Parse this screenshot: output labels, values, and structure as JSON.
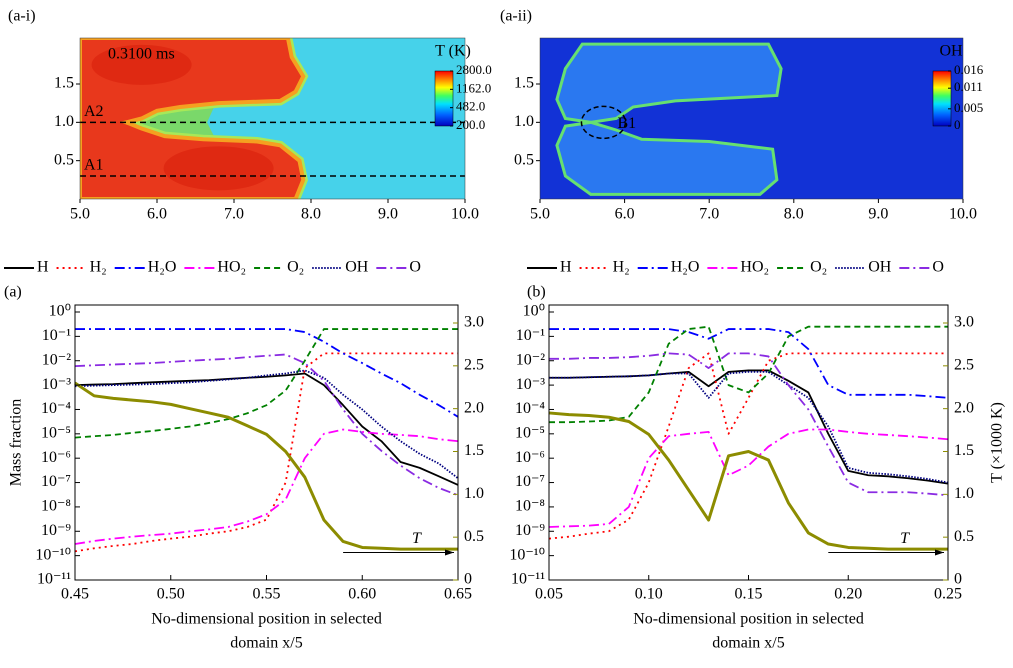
{
  "chart_data": [
    {
      "type": "heatmap",
      "label": "(a-i)",
      "time": "0.3100 ms",
      "ctitle": "T (K)",
      "xlim": [
        5,
        10
      ],
      "ylim": [
        0,
        2.1
      ],
      "xticks": [
        {
          "value": 5,
          "label": "5.0"
        },
        {
          "value": 6,
          "label": "6.0"
        },
        {
          "value": 7,
          "label": "7.0"
        },
        {
          "value": 8,
          "label": "8.0"
        },
        {
          "value": 9,
          "label": "9.0"
        },
        {
          "value": 10,
          "label": "10.0"
        }
      ],
      "yticks": [
        0.5,
        {
          "value": 1,
          "label": "1.0"
        },
        1.5
      ],
      "clim": [
        200,
        2800
      ],
      "cscale": "log",
      "cticks": [
        {
          "value": 2800,
          "label": "2800.0"
        },
        {
          "value": 1162,
          "label": "1162.0"
        },
        {
          "value": 482,
          "label": "482.0"
        },
        {
          "value": 200,
          "label": "200.0"
        }
      ],
      "field": "temperature",
      "lines": [
        {
          "label": "A2",
          "y": 1
        },
        {
          "label": "A1",
          "y": 0.3
        }
      ]
    },
    {
      "type": "heatmap",
      "label": "(a-ii)",
      "ctitle": "OH",
      "marker": "B1",
      "xlim": [
        5,
        10
      ],
      "ylim": [
        0,
        2.1
      ],
      "xticks": [
        {
          "value": 5,
          "label": "5.0"
        },
        {
          "value": 6,
          "label": "6.0"
        },
        {
          "value": 7,
          "label": "7.0"
        },
        {
          "value": 8,
          "label": "8.0"
        },
        {
          "value": 9,
          "label": "9.0"
        },
        {
          "value": 10,
          "label": "10.0"
        }
      ],
      "yticks": [
        0.5,
        {
          "value": 1,
          "label": "1.0"
        },
        1.5
      ],
      "clim": [
        0,
        0.016
      ],
      "cscale": "linear",
      "cticks": [
        0.016,
        0.011,
        0.005,
        0
      ],
      "field": "oh"
    },
    {
      "type": "line",
      "label": "(a)",
      "ylabel": "Mass fraction",
      "xlabel": [
        "No-dimensional position in selected",
        "domain x/5"
      ],
      "legend": "top",
      "yscale": "log",
      "xlim": [
        0.45,
        0.65
      ],
      "xticks": [
        0.45,
        {
          "value": 0.5,
          "label": "0.50"
        },
        0.55,
        {
          "value": 0.6,
          "label": "0.60"
        },
        0.65
      ],
      "ylim": [
        1e-11,
        1.94
      ],
      "yticks": [
        {
          "value": 1e-11,
          "label": "10⁻¹¹"
        },
        {
          "value": 1e-10,
          "label": "10⁻¹⁰"
        },
        {
          "value": 1e-09,
          "label": "10⁻⁹"
        },
        {
          "value": 1e-08,
          "label": "10⁻⁸"
        },
        {
          "value": 1e-07,
          "label": "10⁻⁷"
        },
        {
          "value": 1e-06,
          "label": "10⁻⁶"
        },
        {
          "value": 1e-05,
          "label": "10⁻⁵"
        },
        {
          "value": 0.0001,
          "label": "10⁻⁴"
        },
        {
          "value": 0.001,
          "label": "10⁻³"
        },
        {
          "value": 0.01,
          "label": "10⁻²"
        },
        {
          "value": 0.1,
          "label": "10⁻¹"
        },
        {
          "value": 1,
          "label": "10⁰"
        }
      ],
      "y2lim": [
        0,
        3.21
      ],
      "y2ticks": [
        0,
        0.5,
        {
          "value": 1,
          "label": "1.0"
        },
        1.5,
        {
          "value": 2,
          "label": "2.0"
        },
        2.5,
        {
          "value": 3,
          "label": "3.0"
        }
      ],
      "x": [
        0.45,
        0.46,
        0.47,
        0.48,
        0.49,
        0.5,
        0.51,
        0.52,
        0.53,
        0.54,
        0.55,
        0.56,
        0.57,
        0.58,
        0.59,
        0.6,
        0.61,
        0.62,
        0.63,
        0.64,
        0.65
      ],
      "series": [
        {
          "name": "H",
          "color": "#000000",
          "style": "solid",
          "values": [
            0.001,
            0.00105,
            0.0011,
            0.0012,
            0.0013,
            0.0014,
            0.0015,
            0.0016,
            0.0018,
            0.002,
            0.0022,
            0.0025,
            0.003,
            0.001,
            0.00015,
            2e-05,
            5e-06,
            7e-07,
            4e-07,
            1.8e-07,
            8e-08
          ]
        },
        {
          "name": "H₂",
          "color": "#ff0000",
          "style": "dotted",
          "values": [
            1.5e-10,
            2e-10,
            2.5e-10,
            3e-10,
            4e-10,
            5e-10,
            6e-10,
            8e-10,
            1e-09,
            1.5e-09,
            3e-09,
            1e-07,
            0.005,
            0.02,
            0.02,
            0.02,
            0.02,
            0.02,
            0.02,
            0.02,
            0.02
          ]
        },
        {
          "name": "H₂O",
          "color": "#0000ff",
          "style": "dash-dot",
          "values": [
            0.2,
            0.2,
            0.2,
            0.2,
            0.2,
            0.2,
            0.2,
            0.2,
            0.2,
            0.2,
            0.2,
            0.2,
            0.15,
            0.06,
            0.02,
            0.008,
            0.003,
            0.0012,
            0.0004,
            0.00015,
            5e-05
          ]
        },
        {
          "name": "HO₂",
          "color": "#ff00ff",
          "style": "dash-dot",
          "values": [
            3e-10,
            4e-10,
            5e-10,
            6e-10,
            7e-10,
            8e-10,
            1e-09,
            1.2e-09,
            1.5e-09,
            2.5e-09,
            5e-09,
            2e-08,
            1e-06,
            1e-05,
            1.5e-05,
            1.2e-05,
            1e-05,
            9e-06,
            8e-06,
            6e-06,
            5e-06
          ]
        },
        {
          "name": "O₂",
          "color": "#008000",
          "style": "dashed",
          "values": [
            7e-06,
            8e-06,
            9e-06,
            1.1e-05,
            1.3e-05,
            1.6e-05,
            2e-05,
            2.8e-05,
            4e-05,
            7e-05,
            0.00015,
            0.0006,
            0.01,
            0.2,
            0.2,
            0.2,
            0.2,
            0.2,
            0.2,
            0.2,
            0.2
          ]
        },
        {
          "name": "OH",
          "color": "#000080",
          "style": "dense-dotted",
          "values": [
            0.0009,
            0.00095,
            0.001,
            0.00105,
            0.0011,
            0.0012,
            0.0013,
            0.0015,
            0.0017,
            0.002,
            0.0025,
            0.003,
            0.004,
            0.002,
            0.0004,
            0.0001,
            2e-05,
            5e-06,
            1.5e-06,
            6e-07,
            1.5e-07
          ]
        },
        {
          "name": "O",
          "color": "#8a2be2",
          "style": "dash-dot",
          "values": [
            0.006,
            0.0065,
            0.007,
            0.0075,
            0.008,
            0.009,
            0.01,
            0.011,
            0.012,
            0.014,
            0.016,
            0.018,
            0.008,
            0.0015,
            0.0001,
            1e-05,
            2e-06,
            5e-07,
            1.5e-07,
            6e-08,
            3e-08
          ]
        },
        {
          "name": "T",
          "color": "#8c8c00",
          "style": "thick",
          "axis": "y2",
          "values": [
            2.3,
            2.15,
            2.12,
            2.1,
            2.08,
            2.05,
            2.0,
            1.95,
            1.9,
            1.8,
            1.7,
            1.5,
            1.2,
            0.7,
            0.45,
            0.38,
            0.37,
            0.36,
            0.36,
            0.36,
            0.36
          ]
        }
      ]
    },
    {
      "type": "line",
      "label": "(b)",
      "y2label": "T (×1000 K)",
      "xlabel": [
        "No-dimensional position in selected",
        "domain x/5"
      ],
      "legend": "top",
      "yscale": "log",
      "xlim": [
        0.05,
        0.25
      ],
      "xticks": [
        0.05,
        {
          "value": 0.1,
          "label": "0.10"
        },
        0.15,
        {
          "value": 0.2,
          "label": "0.20"
        },
        0.25
      ],
      "ylim": [
        1e-11,
        1.94
      ],
      "yticks": [
        {
          "value": 1e-11,
          "label": "10⁻¹¹"
        },
        {
          "value": 1e-10,
          "label": "10⁻¹⁰"
        },
        {
          "value": 1e-09,
          "label": "10⁻⁹"
        },
        {
          "value": 1e-08,
          "label": "10⁻⁸"
        },
        {
          "value": 1e-07,
          "label": "10⁻⁷"
        },
        {
          "value": 1e-06,
          "label": "10⁻⁶"
        },
        {
          "value": 1e-05,
          "label": "10⁻⁵"
        },
        {
          "value": 0.0001,
          "label": "10⁻⁴"
        },
        {
          "value": 0.001,
          "label": "10⁻³"
        },
        {
          "value": 0.01,
          "label": "10⁻²"
        },
        {
          "value": 0.1,
          "label": "10⁻¹"
        },
        {
          "value": 1,
          "label": "10⁰"
        }
      ],
      "y2lim": [
        0,
        3.21
      ],
      "y2ticks": [
        0,
        0.5,
        {
          "value": 1,
          "label": "1.0"
        },
        1.5,
        {
          "value": 2,
          "label": "2.0"
        },
        2.5,
        {
          "value": 3,
          "label": "3.0"
        }
      ],
      "x": [
        0.05,
        0.06,
        0.07,
        0.08,
        0.09,
        0.1,
        0.11,
        0.12,
        0.13,
        0.14,
        0.15,
        0.16,
        0.17,
        0.18,
        0.19,
        0.2,
        0.21,
        0.22,
        0.23,
        0.24,
        0.25
      ],
      "series": [
        {
          "name": "H",
          "color": "#000000",
          "style": "solid",
          "values": [
            0.002,
            0.002,
            0.0021,
            0.0022,
            0.0023,
            0.0025,
            0.003,
            0.0035,
            0.0009,
            0.0035,
            0.004,
            0.004,
            0.0015,
            0.0005,
            1e-05,
            3e-07,
            2e-07,
            1.8e-07,
            1.5e-07,
            1.2e-07,
            9e-08
          ]
        },
        {
          "name": "H₂",
          "color": "#ff0000",
          "style": "dotted",
          "values": [
            5e-10,
            6e-10,
            8e-10,
            1e-09,
            3e-09,
            1e-07,
            2e-05,
            0.005,
            0.02,
            1e-05,
            0.0003,
            0.01,
            0.02,
            0.02,
            0.02,
            0.02,
            0.02,
            0.02,
            0.02,
            0.02,
            0.02
          ]
        },
        {
          "name": "H₂O",
          "color": "#0000ff",
          "style": "dash-dot",
          "values": [
            0.2,
            0.2,
            0.2,
            0.2,
            0.2,
            0.2,
            0.2,
            0.15,
            0.08,
            0.2,
            0.2,
            0.2,
            0.15,
            0.03,
            0.001,
            0.0004,
            0.0004,
            0.0004,
            0.0004,
            0.00035,
            0.0003
          ]
        },
        {
          "name": "HO₂",
          "color": "#ff00ff",
          "style": "dash-dot",
          "values": [
            1.5e-09,
            1.6e-09,
            1.7e-09,
            2e-09,
            1e-08,
            1e-06,
            8e-06,
            1e-05,
            1.2e-05,
            2e-07,
            5e-07,
            3e-06,
            1e-05,
            1.5e-05,
            1.5e-05,
            1.2e-05,
            1e-05,
            9e-06,
            8e-06,
            7e-06,
            6e-06
          ]
        },
        {
          "name": "O₂",
          "color": "#008000",
          "style": "dashed",
          "values": [
            3e-05,
            3e-05,
            3.2e-05,
            3.5e-05,
            5e-05,
            0.0005,
            0.05,
            0.2,
            0.25,
            0.001,
            0.0005,
            0.003,
            0.1,
            0.25,
            0.25,
            0.25,
            0.25,
            0.25,
            0.25,
            0.25,
            0.25
          ]
        },
        {
          "name": "OH",
          "color": "#000080",
          "style": "dense-dotted",
          "values": [
            0.002,
            0.002,
            0.0021,
            0.0022,
            0.0023,
            0.0025,
            0.003,
            0.003,
            0.0003,
            0.003,
            0.0035,
            0.0035,
            0.001,
            0.0003,
            2e-05,
            4e-07,
            2.5e-07,
            2.2e-07,
            1.8e-07,
            1.4e-07,
            1e-07
          ]
        },
        {
          "name": "O",
          "color": "#8a2be2",
          "style": "dash-dot",
          "values": [
            0.012,
            0.012,
            0.013,
            0.013,
            0.014,
            0.016,
            0.02,
            0.018,
            0.005,
            0.02,
            0.02,
            0.015,
            0.001,
            0.0001,
            3e-06,
            1e-07,
            4e-08,
            4e-08,
            4e-08,
            3.5e-08,
            3e-08
          ]
        },
        {
          "name": "T",
          "color": "#8c8c00",
          "style": "thick",
          "axis": "y2",
          "values": [
            1.95,
            1.93,
            1.92,
            1.9,
            1.85,
            1.7,
            1.4,
            1.05,
            0.7,
            1.45,
            1.5,
            1.4,
            0.9,
            0.55,
            0.42,
            0.38,
            0.37,
            0.36,
            0.36,
            0.36,
            0.36
          ]
        }
      ]
    }
  ]
}
